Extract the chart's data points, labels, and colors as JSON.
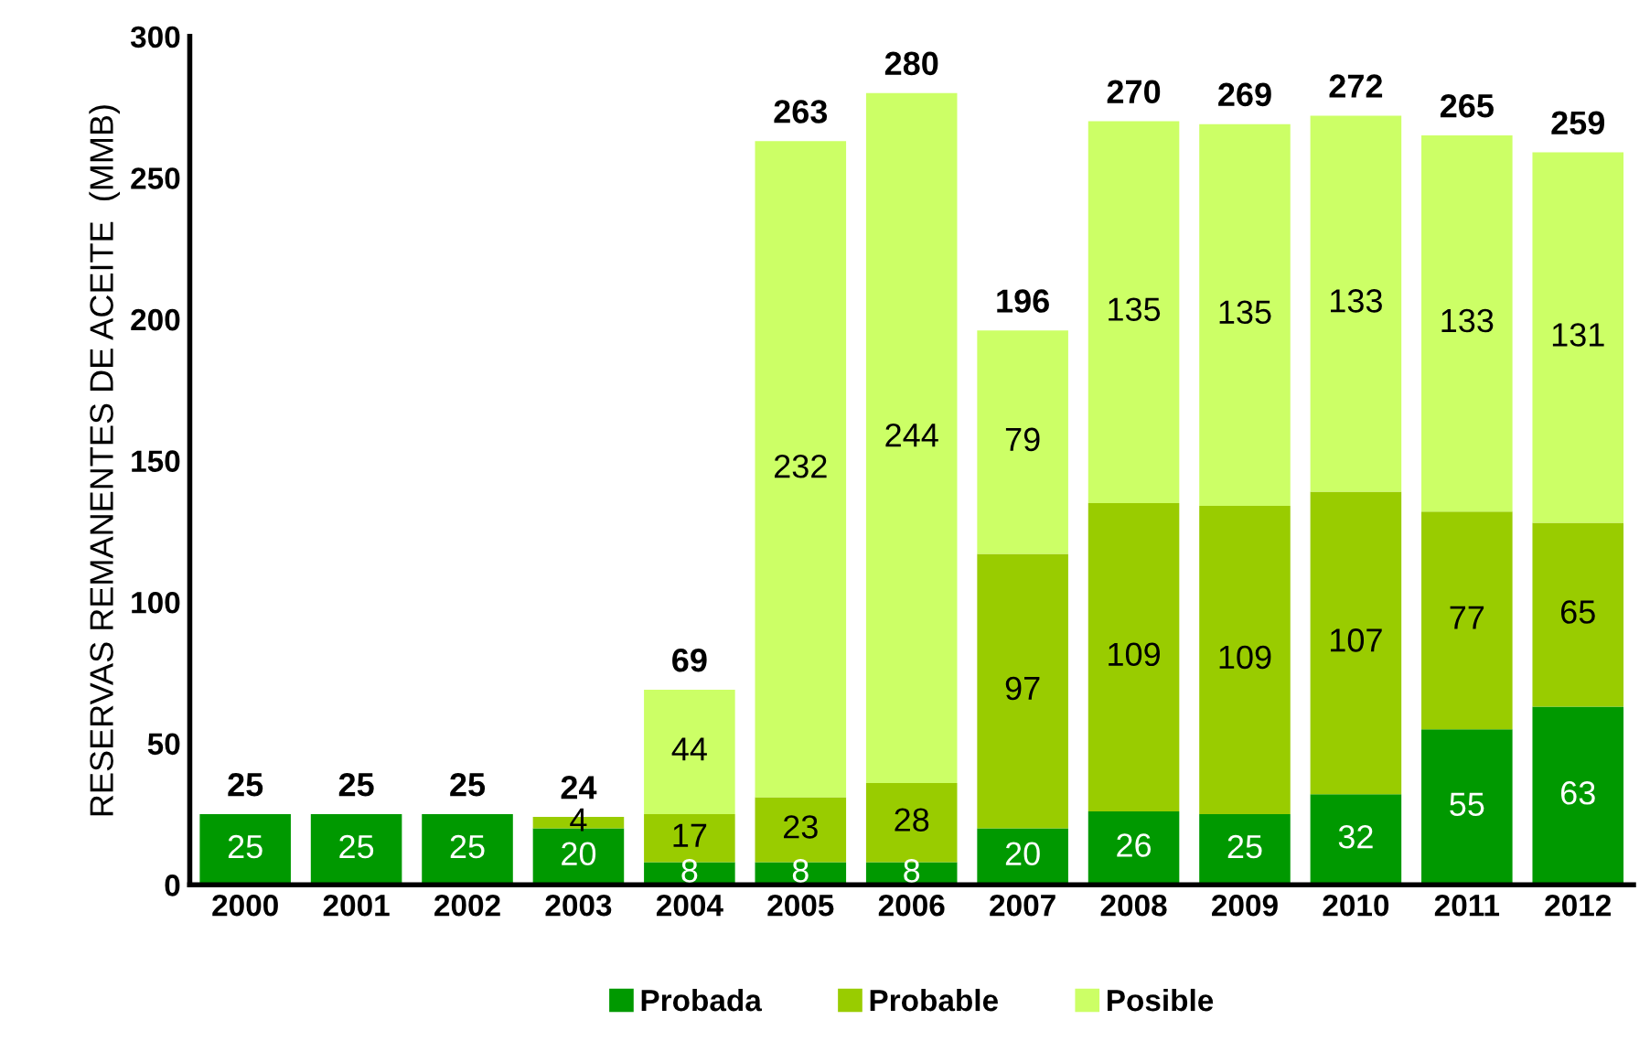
{
  "chart_data": {
    "type": "bar",
    "stacked": true,
    "ylabel": "RESERVAS REMANENTES DE ACEITE  (MMB)",
    "categories": [
      "2000",
      "2001",
      "2002",
      "2003",
      "2004",
      "2005",
      "2006",
      "2007",
      "2008",
      "2009",
      "2010",
      "2011",
      "2012"
    ],
    "series": [
      {
        "name": "Probada",
        "color": "#009900",
        "values": [
          25,
          25,
          25,
          20,
          8,
          8,
          8,
          20,
          26,
          25,
          32,
          55,
          63
        ],
        "value_labels": [
          "25",
          "25",
          "25",
          "20",
          "8",
          "8",
          "8",
          "20",
          "26",
          "25",
          "32",
          "55",
          "63"
        ]
      },
      {
        "name": "Probable",
        "color": "#99cc00",
        "values": [
          0,
          0,
          0,
          4,
          17,
          23,
          28,
          97,
          109,
          109,
          107,
          77,
          65
        ],
        "value_labels": [
          null,
          null,
          null,
          "4",
          "17",
          "23",
          "28",
          "97",
          "109",
          "109",
          "107",
          "77",
          "65"
        ]
      },
      {
        "name": "Posible",
        "color": "#ccff66",
        "values": [
          0,
          0,
          0,
          0,
          44,
          232,
          244,
          79,
          135,
          135,
          133,
          133,
          131
        ],
        "value_labels": [
          null,
          null,
          null,
          null,
          "44",
          "232",
          "244",
          "79",
          "135",
          "135",
          "133",
          "133",
          "131"
        ]
      }
    ],
    "totals": [
      "25",
      "25",
      "25",
      "24",
      "69",
      "263",
      "280",
      "196",
      "270",
      "269",
      "272",
      "265",
      "259"
    ],
    "ylim": [
      0,
      300
    ],
    "yticks": [
      0,
      50,
      100,
      150,
      200,
      250,
      300
    ],
    "grid": false,
    "legend": "bottom"
  }
}
